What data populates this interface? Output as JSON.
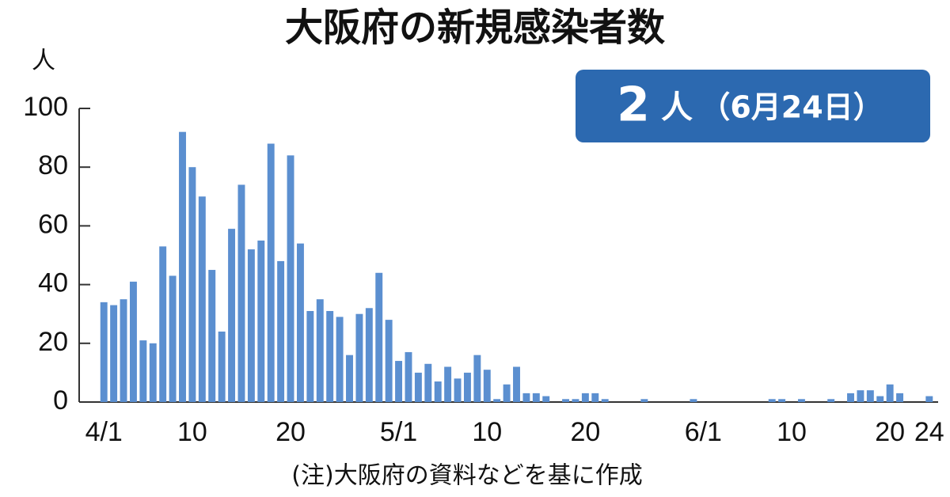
{
  "chart_data": {
    "type": "bar",
    "title": "大阪府の新規感染者数",
    "y_unit": "人",
    "annotation": {
      "number": "2",
      "unit": "人",
      "date": "（6月24日）"
    },
    "note": "(注)大阪府の資料などを基に作成",
    "categories": [
      "4/1",
      null,
      null,
      null,
      null,
      null,
      null,
      null,
      null,
      "10",
      null,
      null,
      null,
      null,
      null,
      null,
      null,
      null,
      null,
      "20",
      null,
      null,
      null,
      null,
      null,
      null,
      null,
      null,
      null,
      null,
      "5/1",
      null,
      null,
      null,
      null,
      null,
      null,
      null,
      null,
      "10",
      null,
      null,
      null,
      null,
      null,
      null,
      null,
      null,
      null,
      "20",
      null,
      null,
      null,
      null,
      null,
      null,
      null,
      null,
      null,
      null,
      null,
      "6/1",
      null,
      null,
      null,
      null,
      null,
      null,
      null,
      null,
      "10",
      null,
      null,
      null,
      null,
      null,
      null,
      null,
      null,
      null,
      "20",
      null,
      null,
      null,
      "24"
    ],
    "values": [
      34,
      33,
      35,
      41,
      21,
      20,
      53,
      43,
      92,
      80,
      70,
      45,
      24,
      59,
      74,
      52,
      55,
      88,
      48,
      84,
      54,
      31,
      35,
      31,
      29,
      16,
      30,
      32,
      44,
      28,
      14,
      17,
      10,
      13,
      7,
      12,
      8,
      10,
      16,
      11,
      1,
      6,
      12,
      3,
      3,
      2,
      0,
      1,
      1,
      3,
      3,
      1,
      0,
      0,
      0,
      1,
      0,
      0,
      0,
      0,
      1,
      0,
      0,
      0,
      0,
      0,
      0,
      0,
      1,
      1,
      0,
      1,
      0,
      0,
      1,
      0,
      3,
      4,
      4,
      2,
      6,
      3,
      0,
      0,
      2
    ],
    "color": "#5b8fd0",
    "ylim": [
      0,
      100
    ],
    "yticks": [
      0,
      20,
      40,
      60,
      80,
      100
    ]
  }
}
